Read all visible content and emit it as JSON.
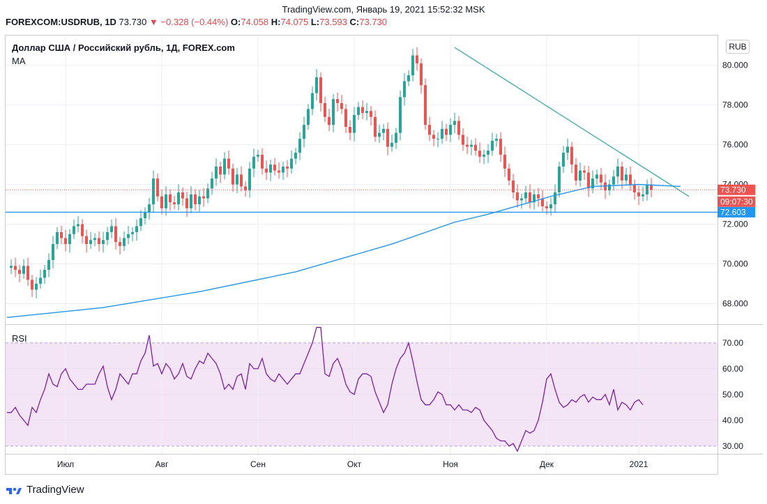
{
  "header": {
    "caption": "TradingView.com, Январь 19, 2021 15:52:32 MSK"
  },
  "ohlc": {
    "symbol": "FOREXCOM:USDRUB, 1D",
    "last": "73.730",
    "arrow": "▼",
    "change": "−0.328 (−0.44%)",
    "o_label": "O:",
    "o": "74.058",
    "h_label": "H:",
    "h": "74.075",
    "l_label": "L:",
    "l": "73.593",
    "c_label": "C:",
    "c": "73.730"
  },
  "main_pane": {
    "title": "Доллар США / Российский рубль, 1Д, FOREX.com",
    "indicator": "MA",
    "currency_button": "RUB",
    "price_tag": "73.730",
    "countdown_tag": "09:07:30",
    "level_tag": "72.603"
  },
  "rsi_pane": {
    "title": "RSI"
  },
  "footer": {
    "brand": "TradingView"
  },
  "colors": {
    "up": "#26a69a",
    "down": "#ef5350",
    "ma": "#2196f3",
    "trend": "#26a69a",
    "level": "#2196f3",
    "rsi_line": "#7b1fa2",
    "rsi_band": "#f3e5f5",
    "price_tag": "#ef5350",
    "level_tag": "#2196f3"
  },
  "chart_data": [
    {
      "type": "candlestick",
      "title": "Доллар США / Российский рубль, 1Д, FOREX.com",
      "ylim": [
        67.0,
        81.5
      ],
      "yticks": [
        "68.000",
        "70.000",
        "72.000",
        "74.000",
        "76.000",
        "78.000",
        "80.000"
      ],
      "ytick_values": [
        68,
        70,
        72,
        74,
        76,
        78,
        80
      ],
      "xticks": [
        "Июл",
        "Авг",
        "Сен",
        "Окт",
        "Ноя",
        "Дек",
        "2021"
      ],
      "xtick_index": [
        14,
        37,
        60,
        83,
        106,
        129,
        151
      ],
      "close": [
        69.8,
        69.9,
        69.7,
        69.5,
        69.9,
        69.2,
        68.7,
        69.0,
        69.3,
        69.7,
        70.2,
        71.0,
        71.6,
        71.3,
        71.0,
        71.5,
        71.9,
        72.0,
        71.4,
        71.0,
        71.2,
        71.3,
        71.0,
        71.2,
        71.6,
        71.9,
        71.1,
        70.9,
        71.3,
        71.5,
        71.6,
        71.9,
        72.3,
        72.6,
        73.0,
        74.3,
        73.4,
        72.8,
        73.5,
        73.1,
        73.0,
        73.6,
        73.3,
        72.8,
        73.5,
        73.0,
        73.4,
        73.3,
        73.8,
        74.3,
        74.9,
        74.5,
        75.3,
        74.8,
        74.0,
        74.5,
        73.9,
        73.7,
        74.8,
        75.4,
        75.5,
        74.8,
        74.6,
        75.0,
        74.7,
        74.6,
        74.9,
        74.8,
        75.3,
        75.6,
        76.3,
        77.0,
        77.8,
        78.6,
        79.4,
        78.1,
        77.4,
        77.0,
        78.3,
        78.1,
        77.8,
        76.9,
        76.6,
        77.5,
        77.9,
        77.6,
        77.7,
        77.4,
        76.4,
        76.6,
        76.8,
        75.9,
        76.1,
        76.6,
        78.4,
        79.2,
        79.5,
        80.5,
        80.1,
        79.0,
        77.0,
        76.5,
        76.3,
        76.3,
        76.8,
        76.5,
        77.0,
        77.2,
        76.5,
        76.0,
        75.9,
        76.0,
        75.7,
        75.4,
        75.5,
        75.7,
        76.2,
        76.3,
        75.5,
        74.8,
        74.2,
        73.6,
        73.2,
        73.3,
        73.6,
        73.1,
        73.5,
        73.3,
        72.9,
        72.8,
        73.0,
        73.6,
        74.9,
        75.6,
        75.9,
        75.0,
        74.2,
        74.7,
        74.6,
        73.8,
        74.3,
        74.5,
        74.1,
        73.7,
        74.0,
        74.4,
        74.9,
        74.2,
        74.5,
        74.0,
        73.6,
        73.4,
        73.5,
        74.0,
        73.73
      ],
      "series": [
        {
          "name": "MA",
          "x": [
            0,
            23,
            46,
            69,
            92,
            107,
            115,
            130,
            140,
            151,
            161
          ],
          "values": [
            67.3,
            67.8,
            68.6,
            69.6,
            71.0,
            72.1,
            72.5,
            73.4,
            73.9,
            74.0,
            73.9
          ]
        },
        {
          "name": "Trend line",
          "x": [
            107,
            163
          ],
          "values": [
            80.9,
            73.4
          ]
        },
        {
          "name": "Support level",
          "x": [
            0,
            163
          ],
          "values": [
            72.603,
            72.603
          ]
        }
      ],
      "last_price": 73.73,
      "level": 72.603
    },
    {
      "type": "line",
      "title": "RSI",
      "ylim": [
        27,
        77
      ],
      "yticks": [
        "30.00",
        "40.00",
        "50.00",
        "60.00",
        "70.00"
      ],
      "ytick_values": [
        30,
        40,
        50,
        60,
        70
      ],
      "band": [
        30,
        70
      ],
      "values": [
        43,
        43,
        45,
        42,
        40,
        38,
        45,
        43,
        48,
        52,
        58,
        54,
        53,
        58,
        60,
        56,
        54,
        52,
        52,
        54,
        54,
        54,
        58,
        61,
        53,
        48,
        52,
        58,
        56,
        54,
        58,
        58,
        63,
        66,
        73,
        61,
        62,
        58,
        62,
        60,
        56,
        58,
        62,
        57,
        56,
        60,
        63,
        62,
        66,
        64,
        62,
        58,
        52,
        54,
        52,
        57,
        58,
        52,
        62,
        60,
        60,
        64,
        58,
        56,
        55,
        58,
        56,
        54,
        56,
        58,
        58,
        62,
        66,
        70,
        76,
        76,
        58,
        57,
        62,
        64,
        60,
        54,
        51,
        50,
        56,
        58,
        58,
        57,
        51,
        47,
        43,
        46,
        54,
        60,
        64,
        66,
        70,
        63,
        55,
        48,
        46,
        46,
        48,
        51,
        50,
        46,
        46,
        44,
        46,
        44,
        44,
        43,
        45,
        44,
        40,
        38,
        36,
        33,
        32,
        32,
        30,
        31,
        28,
        32,
        36,
        35,
        36,
        40,
        47,
        56,
        58,
        52,
        47,
        45,
        46,
        48,
        47,
        49,
        50,
        47,
        49,
        48,
        48,
        50,
        46,
        52,
        44,
        47,
        46,
        44,
        47,
        48,
        46
      ]
    }
  ]
}
